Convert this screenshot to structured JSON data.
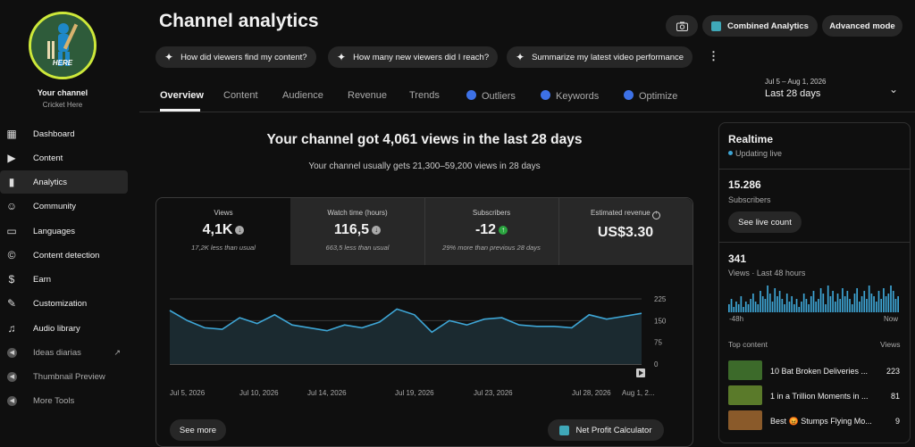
{
  "channel": {
    "name": "Your channel",
    "handle": "Cricket Here",
    "avatar_text": "HERE"
  },
  "sidebar": {
    "items": [
      {
        "label": "Dashboard",
        "icon": "dashboard-icon",
        "glyph": "▦"
      },
      {
        "label": "Content",
        "icon": "content-icon",
        "glyph": "▶"
      },
      {
        "label": "Analytics",
        "icon": "analytics-icon",
        "glyph": "▮"
      },
      {
        "label": "Community",
        "icon": "community-icon",
        "glyph": "☺"
      },
      {
        "label": "Languages",
        "icon": "languages-icon",
        "glyph": "▭"
      },
      {
        "label": "Content detection",
        "icon": "content-detection-icon",
        "glyph": "©"
      },
      {
        "label": "Earn",
        "icon": "earn-icon",
        "glyph": "$"
      },
      {
        "label": "Customization",
        "icon": "customization-icon",
        "glyph": "✎"
      },
      {
        "label": "Audio library",
        "icon": "audio-library-icon",
        "glyph": "♫"
      },
      {
        "label": "Ideas diarias",
        "icon": "extension-icon",
        "glyph": "◀"
      },
      {
        "label": "Thumbnail Preview",
        "icon": "extension-icon",
        "glyph": "◀"
      },
      {
        "label": "More Tools",
        "icon": "extension-icon",
        "glyph": "◀"
      }
    ]
  },
  "header": {
    "title": "Channel analytics",
    "combined_label": "Combined Analytics",
    "advanced_label": "Advanced mode",
    "suggestions": [
      "How did viewers find my content?",
      "How many new viewers did I reach?",
      "Summarize my latest video performance"
    ]
  },
  "tabs": [
    "Overview",
    "Content",
    "Audience",
    "Revenue",
    "Trends",
    "Outliers",
    "Keywords",
    "Optimize"
  ],
  "date_range": {
    "range": "Jul 5 – Aug 1, 2026",
    "label": "Last 28 days"
  },
  "summary": {
    "headline": "Your channel got 4,061 views in the last 28 days",
    "subline": "Your channel usually gets 21,300–59,200 views in 28 days"
  },
  "metrics": [
    {
      "label": "Views",
      "value": "4,1K",
      "sub": "17,2K less than usual",
      "trend": "down"
    },
    {
      "label": "Watch time (hours)",
      "value": "116,5",
      "sub": "663,5 less than usual",
      "trend": "down"
    },
    {
      "label": "Subscribers",
      "value": "-12",
      "sub": "29% more than previous 28 days",
      "trend": "up"
    },
    {
      "label": "Estimated revenue",
      "value": "US$3.30",
      "sub": "",
      "trend": "none"
    }
  ],
  "chart_data": {
    "type": "area",
    "x": [
      "Jul 5",
      "Jul 6",
      "Jul 7",
      "Jul 8",
      "Jul 9",
      "Jul 10",
      "Jul 11",
      "Jul 12",
      "Jul 13",
      "Jul 14",
      "Jul 15",
      "Jul 16",
      "Jul 17",
      "Jul 18",
      "Jul 19",
      "Jul 20",
      "Jul 21",
      "Jul 22",
      "Jul 23",
      "Jul 24",
      "Jul 25",
      "Jul 26",
      "Jul 27",
      "Jul 28",
      "Jul 29",
      "Jul 30",
      "Jul 31",
      "Aug 1"
    ],
    "values": [
      185,
      150,
      125,
      120,
      160,
      140,
      170,
      135,
      125,
      115,
      135,
      125,
      145,
      190,
      170,
      110,
      150,
      135,
      155,
      160,
      135,
      130,
      130,
      125,
      170,
      155,
      165,
      175
    ],
    "xticks": [
      "Jul 5, 2026",
      "Jul 10, 2026",
      "Jul 14, 2026",
      "Jul 19, 2026",
      "Jul 23, 2026",
      "Jul 28, 2026",
      "Aug 1, 2..."
    ],
    "yticks": [
      "225",
      "150",
      "75",
      "0"
    ],
    "ylim": [
      0,
      225
    ],
    "color": "#3ea6d6"
  },
  "buttons": {
    "see_more": "See more",
    "net_profit": "Net Profit Calculator",
    "see_live": "See live count"
  },
  "realtime": {
    "title": "Realtime",
    "status": "Updating live",
    "subscribers": "15.286",
    "subscribers_label": "Subscribers",
    "views": "341",
    "views_label": "Views · Last 48 hours",
    "axis_start": "-48h",
    "axis_end": "Now",
    "bars": [
      3,
      5,
      2,
      4,
      3,
      6,
      2,
      4,
      3,
      5,
      7,
      4,
      3,
      8,
      6,
      5,
      10,
      7,
      4,
      9,
      6,
      8,
      5,
      3,
      7,
      4,
      6,
      3,
      5,
      2,
      4,
      7,
      5,
      3,
      6,
      8,
      4,
      5,
      9,
      7,
      3,
      10,
      6,
      8,
      4,
      7,
      5,
      9,
      6,
      8,
      5,
      3,
      7,
      9,
      4,
      6,
      8,
      5,
      10,
      7,
      6,
      4,
      8,
      5,
      9,
      6,
      7,
      10,
      8,
      5,
      6
    ],
    "top_content_label": "Top content",
    "views_col_label": "Views",
    "top_content": [
      {
        "title": "10 Bat Broken Deliveries ...",
        "views": "223",
        "thumb": "#3c6a2a"
      },
      {
        "title": "1 in a Trillion Moments in ...",
        "views": "81",
        "thumb": "#5a7a2a"
      },
      {
        "title": "Best 😡 Stumps Flying Mo...",
        "views": "9",
        "thumb": "#8a5a2a"
      }
    ]
  }
}
